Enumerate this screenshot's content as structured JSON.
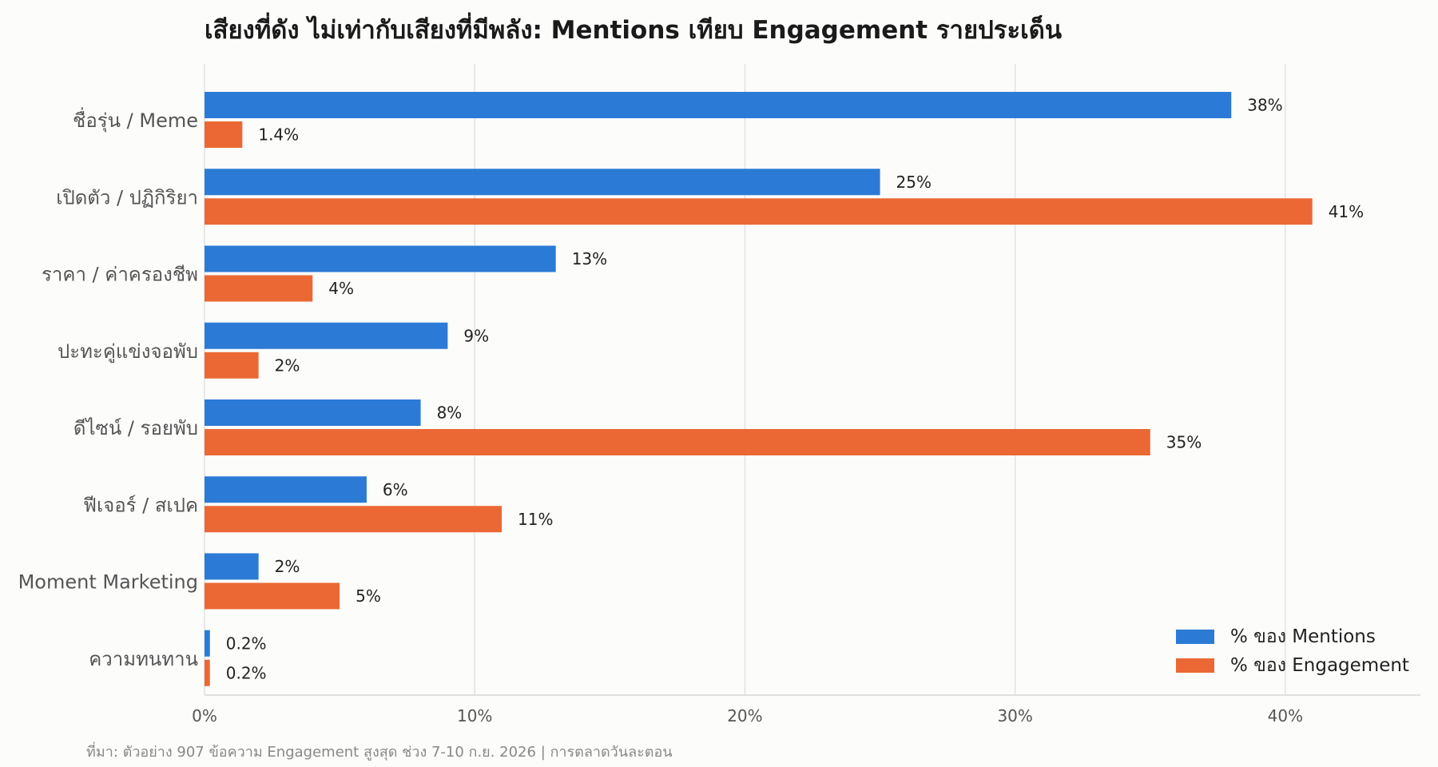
{
  "chart_data": {
    "type": "bar",
    "orientation": "horizontal",
    "title": "เสียงที่ดัง ไม่เท่ากับเสียงที่มีพลัง: Mentions เทียบ Engagement รายประเด็น",
    "xlabel": "",
    "ylabel": "",
    "categories": [
      "ชื่อรุ่น / Meme",
      "เปิดตัว / ปฏิกิริยา",
      "ราคา / ค่าครองชีพ",
      "ปะทะคู่แข่งจอพับ",
      "ดีไซน์ / รอยพับ",
      "ฟีเจอร์ / สเปค",
      "Moment Marketing",
      "ความทนทาน"
    ],
    "series": [
      {
        "name": "% ของ Mentions",
        "color": "#2b7bd6",
        "values": [
          38,
          25,
          13,
          9,
          8,
          6,
          2,
          0.2
        ],
        "labels": [
          "38%",
          "25%",
          "13%",
          "9%",
          "8%",
          "6%",
          "2%",
          "0.2%"
        ]
      },
      {
        "name": "% ของ Engagement",
        "color": "#eb6834",
        "values": [
          1.4,
          41,
          4,
          2,
          35,
          11,
          5,
          0.2
        ],
        "labels": [
          "1.4%",
          "41%",
          "4%",
          "2%",
          "35%",
          "11%",
          "5%",
          "0.2%"
        ]
      }
    ],
    "xlim": [
      0,
      45
    ],
    "xticks": [
      0,
      10,
      20,
      30,
      40
    ],
    "xtick_labels": [
      "0%",
      "10%",
      "20%",
      "30%",
      "40%"
    ],
    "grid": true,
    "legend_position": "bottom-right",
    "source": "ที่มา: ตัวอย่าง 907 ข้อความ Engagement สูงสุด ช่วง 7-10 ก.ย. 2026 | การตลาดวันละตอน"
  }
}
